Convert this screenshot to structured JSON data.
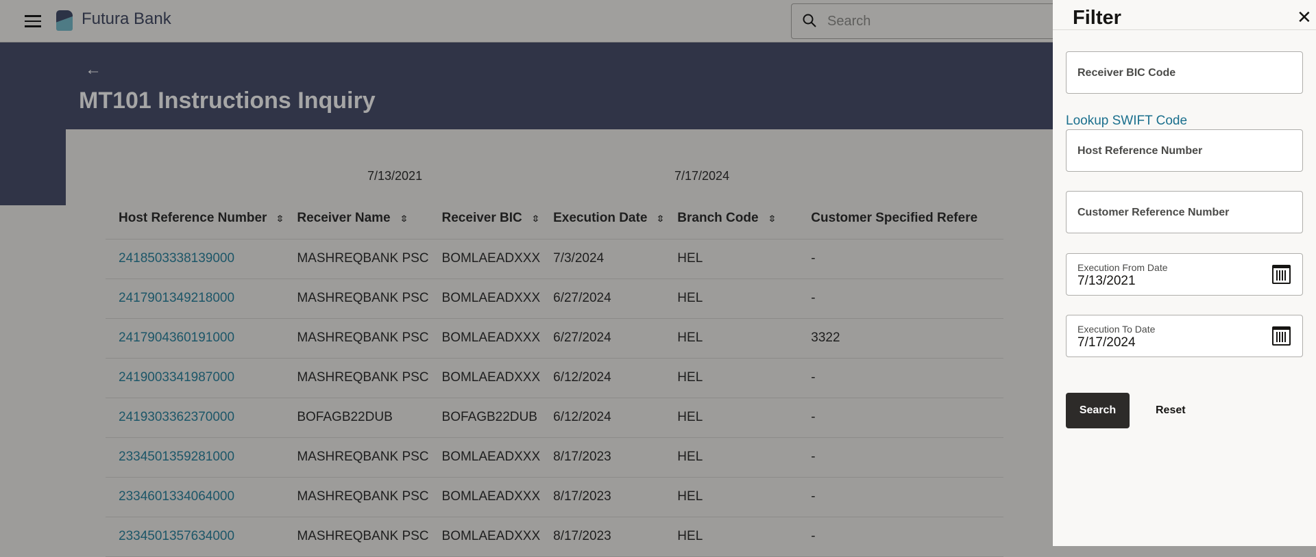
{
  "header": {
    "brand": "Futura Bank",
    "search_placeholder": "Search"
  },
  "page": {
    "title": "MT101 Instructions Inquiry",
    "from_date": "7/13/2021",
    "to_date": "7/17/2024"
  },
  "table": {
    "columns": [
      "Host Reference Number",
      "Receiver Name",
      "Receiver BIC",
      "Execution Date",
      "Branch Code",
      "Customer Specified Refere"
    ],
    "rows": [
      [
        "2418503338139000",
        "MASHREQBANK PSC",
        "BOMLAEADXXX",
        "7/3/2024",
        "HEL",
        "-"
      ],
      [
        "2417901349218000",
        "MASHREQBANK PSC",
        "BOMLAEADXXX",
        "6/27/2024",
        "HEL",
        "-"
      ],
      [
        "2417904360191000",
        "MASHREQBANK PSC",
        "BOMLAEADXXX",
        "6/27/2024",
        "HEL",
        "3322"
      ],
      [
        "2419003341987000",
        "MASHREQBANK PSC",
        "BOMLAEADXXX",
        "6/12/2024",
        "HEL",
        "-"
      ],
      [
        "2419303362370000",
        "BOFAGB22DUB",
        "BOFAGB22DUB",
        "6/12/2024",
        "HEL",
        "-"
      ],
      [
        "2334501359281000",
        "MASHREQBANK PSC",
        "BOMLAEADXXX",
        "8/17/2023",
        "HEL",
        "-"
      ],
      [
        "2334601334064000",
        "MASHREQBANK PSC",
        "BOMLAEADXXX",
        "8/17/2023",
        "HEL",
        "-"
      ],
      [
        "2334501357634000",
        "MASHREQBANK PSC",
        "BOMLAEADXXX",
        "8/17/2023",
        "HEL",
        "-"
      ]
    ]
  },
  "filter": {
    "title": "Filter",
    "receiver_bic_label": "Receiver BIC Code",
    "lookup_link": "Lookup SWIFT Code",
    "host_ref_label": "Host Reference Number",
    "cust_ref_label": "Customer Reference Number",
    "from_label": "Execution From Date",
    "from_value": "7/13/2021",
    "to_label": "Execution To Date",
    "to_value": "7/17/2024",
    "search_button": "Search",
    "reset_button": "Reset"
  },
  "colors": {
    "link": "#1c5668",
    "header_band": "#303447",
    "primary_button": "#2d2b29"
  }
}
